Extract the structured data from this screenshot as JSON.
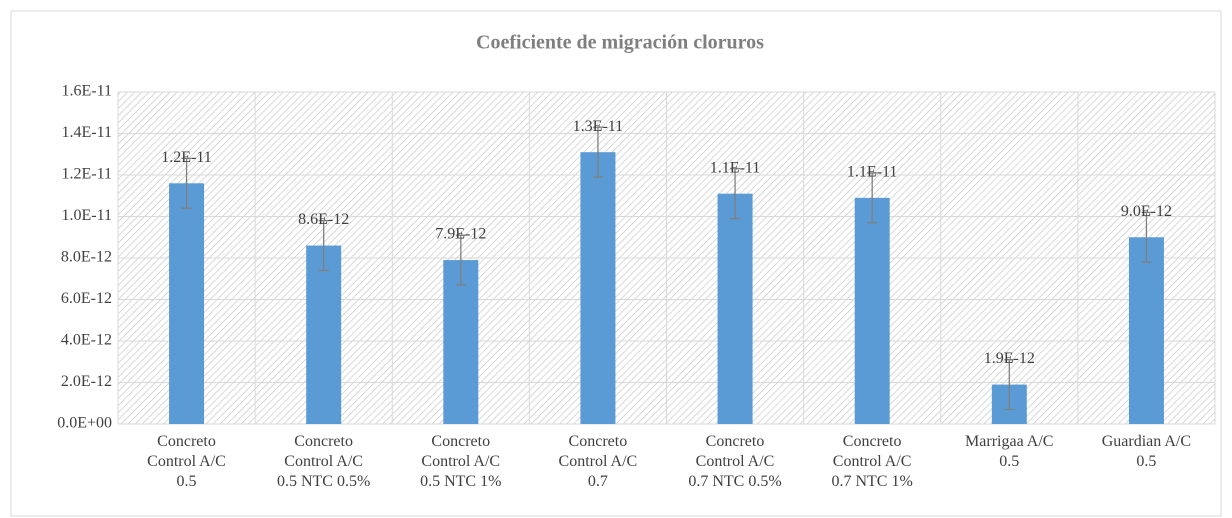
{
  "chart_data": {
    "type": "bar",
    "title": "Coeficiente de migración cloruros",
    "categories": [
      "Concreto\nControl A/C\n0.5",
      "Concreto\nControl A/C\n0.5 NTC 0.5%",
      "Concreto\nControl A/C\n0.5 NTC 1%",
      "Concreto\nControl A/C\n0.7",
      "Concreto\nControl A/C\n0.7 NTC 0.5%",
      "Concreto\nControl A/C\n0.7 NTC 1%",
      "Marrigaa A/C\n0.5",
      "Guardian A/C\n0.5"
    ],
    "values": [
      1.16e-11,
      8.6e-12,
      7.9e-12,
      1.31e-11,
      1.11e-11,
      1.09e-11,
      1.9e-12,
      9e-12
    ],
    "value_labels": [
      "1.2E-11",
      "8.6E-12",
      "7.9E-12",
      "1.3E-11",
      "1.1E-11",
      "1.1E-11",
      "1.9E-12",
      "9.0E-12"
    ],
    "errors": [
      1.2e-12,
      1.2e-12,
      1.2e-12,
      1.2e-12,
      1.2e-12,
      1.2e-12,
      1.2e-12,
      1.2e-12
    ],
    "color": "#5b9bd5",
    "ylim": [
      0,
      1.6e-11
    ],
    "yticks": [
      {
        "value": 0,
        "label": "0.0E+00"
      },
      {
        "value": 2e-12,
        "label": "2.0E-12"
      },
      {
        "value": 4e-12,
        "label": "4.0E-12"
      },
      {
        "value": 6e-12,
        "label": "6.0E-12"
      },
      {
        "value": 8e-12,
        "label": "8.0E-12"
      },
      {
        "value": 1e-11,
        "label": "1.0E-11"
      },
      {
        "value": 1.2e-11,
        "label": "1.2E-11"
      },
      {
        "value": 1.4e-11,
        "label": "1.4E-11"
      },
      {
        "value": 1.6e-11,
        "label": "1.6E-11"
      }
    ],
    "grid": true
  }
}
